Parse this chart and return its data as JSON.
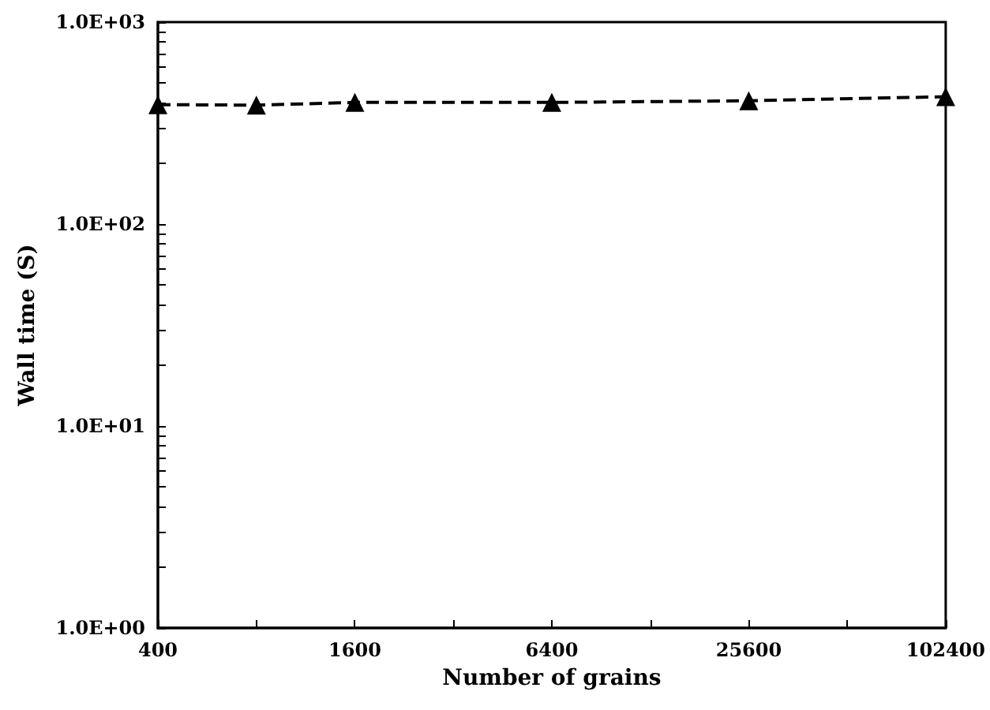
{
  "chart_data": {
    "type": "line",
    "xlabel": "Number of grains",
    "ylabel": "Wall time (S)",
    "x": [
      400,
      800,
      1600,
      6400,
      25600,
      102400
    ],
    "series": [
      {
        "color": "#000000",
        "values": [
          390,
          388,
          400,
          400,
          408,
          427
        ]
      }
    ],
    "log": "xy",
    "marker": "triangle",
    "line_style": "dashed",
    "xlim": [
      400,
      102400
    ],
    "xticks": [
      400,
      {
        "value": 800,
        "label": null
      },
      1600,
      {
        "value": 3200,
        "label": null
      },
      6400,
      {
        "value": 12800,
        "label": null
      },
      25600,
      {
        "value": 51200,
        "label": null
      },
      102400
    ],
    "ylim": [
      1,
      1000
    ],
    "yticks": [
      {
        "value": 1,
        "label": "1.0E+00"
      },
      {
        "value": 2,
        "label": null
      },
      {
        "value": 3,
        "label": null
      },
      {
        "value": 4,
        "label": null
      },
      {
        "value": 5,
        "label": null
      },
      {
        "value": 6,
        "label": null
      },
      {
        "value": 7,
        "label": null
      },
      {
        "value": 8,
        "label": null
      },
      {
        "value": 9,
        "label": null
      },
      {
        "value": 10,
        "label": "1.0E+01"
      },
      {
        "value": 20,
        "label": null
      },
      {
        "value": 30,
        "label": null
      },
      {
        "value": 40,
        "label": null
      },
      {
        "value": 50,
        "label": null
      },
      {
        "value": 60,
        "label": null
      },
      {
        "value": 70,
        "label": null
      },
      {
        "value": 80,
        "label": null
      },
      {
        "value": 90,
        "label": null
      },
      {
        "value": 100,
        "label": "1.0E+02"
      },
      {
        "value": 200,
        "label": null
      },
      {
        "value": 300,
        "label": null
      },
      {
        "value": 400,
        "label": null
      },
      {
        "value": 500,
        "label": null
      },
      {
        "value": 600,
        "label": null
      },
      {
        "value": 700,
        "label": null
      },
      {
        "value": 800,
        "label": null
      },
      {
        "value": 900,
        "label": null
      },
      {
        "value": 1000,
        "label": "1.0E+03"
      }
    ]
  }
}
